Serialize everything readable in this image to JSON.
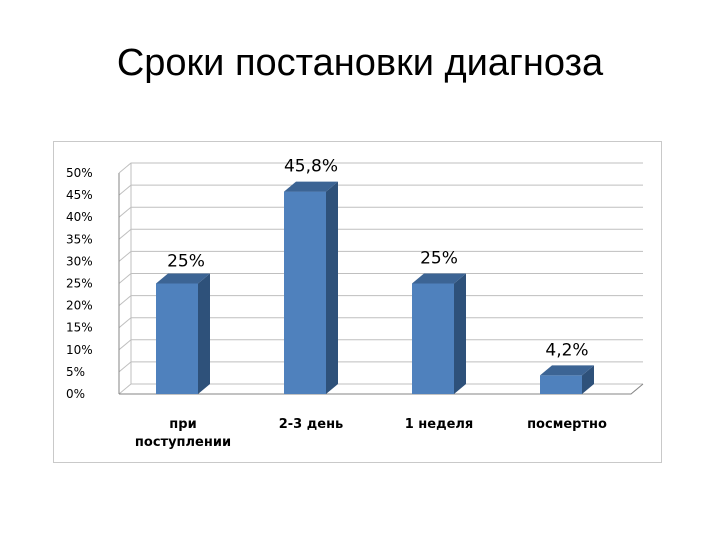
{
  "slide": {
    "title": "Сроки постановки диагноза"
  },
  "chart_data": {
    "type": "bar",
    "title": "",
    "xlabel": "",
    "ylabel": "",
    "categories": [
      [
        "при",
        "поступлении"
      ],
      [
        "2-3 день"
      ],
      [
        "1 неделя"
      ],
      [
        "посмертно"
      ]
    ],
    "values": [
      25,
      45.8,
      25,
      4.2
    ],
    "data_labels": [
      "25%",
      "45,8%",
      "25%",
      "4,2%"
    ],
    "y_ticks": [
      "0%",
      "5%",
      "10%",
      "15%",
      "20%",
      "25%",
      "30%",
      "35%",
      "40%",
      "45%",
      "50%"
    ],
    "ylim": [
      0,
      50
    ],
    "grid": true,
    "legend": "none",
    "three_d": true,
    "colors": {
      "bar_front": "#4f81bd",
      "bar_side": "#2e517a",
      "bar_top": "#3c6494",
      "grid": "#bfbfbf"
    }
  }
}
